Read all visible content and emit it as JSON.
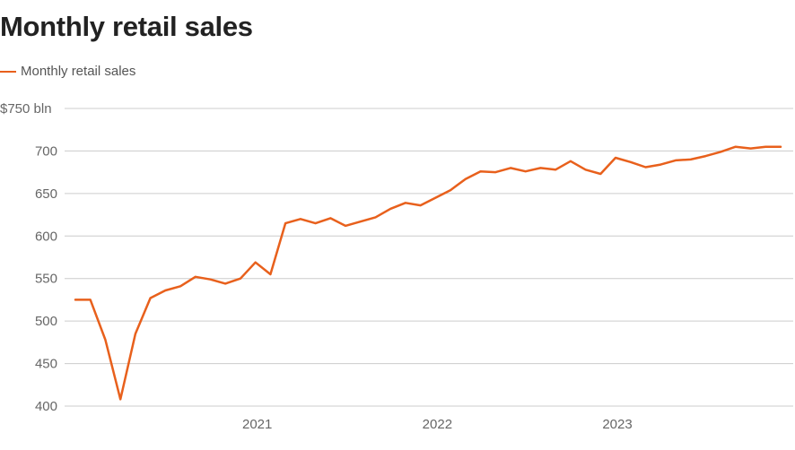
{
  "title": "Monthly retail sales",
  "legend": {
    "label": "Monthly retail sales",
    "swatch_icon": "line-swatch"
  },
  "colors": {
    "series": "#e8601c",
    "grid": "#cccccc",
    "text": "#666666"
  },
  "chart_data": {
    "type": "line",
    "title": "Monthly retail sales",
    "xlabel": "",
    "ylabel": "",
    "ylim": [
      400,
      750
    ],
    "yticks": [
      400,
      450,
      500,
      550,
      600,
      650,
      700,
      750
    ],
    "ytick_labels": [
      "400",
      "450",
      "500",
      "550",
      "600",
      "650",
      "700",
      "$750 bln"
    ],
    "xticks": [
      "2021-01",
      "2022-01",
      "2023-01"
    ],
    "xtick_labels": [
      "2021",
      "2022",
      "2023"
    ],
    "grid": true,
    "legend_position": "top-left",
    "series": [
      {
        "name": "Monthly retail sales",
        "x": [
          "2020-01",
          "2020-02",
          "2020-03",
          "2020-04",
          "2020-05",
          "2020-06",
          "2020-07",
          "2020-08",
          "2020-09",
          "2020-10",
          "2020-11",
          "2020-12",
          "2021-01",
          "2021-02",
          "2021-03",
          "2021-04",
          "2021-05",
          "2021-06",
          "2021-07",
          "2021-08",
          "2021-09",
          "2021-10",
          "2021-11",
          "2021-12",
          "2022-01",
          "2022-02",
          "2022-03",
          "2022-04",
          "2022-05",
          "2022-06",
          "2022-07",
          "2022-08",
          "2022-09",
          "2022-10",
          "2022-11",
          "2022-12",
          "2023-01",
          "2023-02",
          "2023-03",
          "2023-04",
          "2023-05",
          "2023-06",
          "2023-07",
          "2023-08",
          "2023-09",
          "2023-10",
          "2023-11",
          "2023-12"
        ],
        "values": [
          525,
          525,
          478,
          408,
          485,
          527,
          536,
          541,
          552,
          549,
          544,
          550,
          569,
          555,
          615,
          620,
          615,
          621,
          612,
          617,
          622,
          632,
          639,
          636,
          645,
          654,
          667,
          676,
          675,
          680,
          676,
          680,
          678,
          688,
          678,
          673,
          692,
          687,
          681,
          684,
          689,
          690,
          694,
          699,
          705,
          703,
          705,
          705
        ]
      }
    ]
  }
}
